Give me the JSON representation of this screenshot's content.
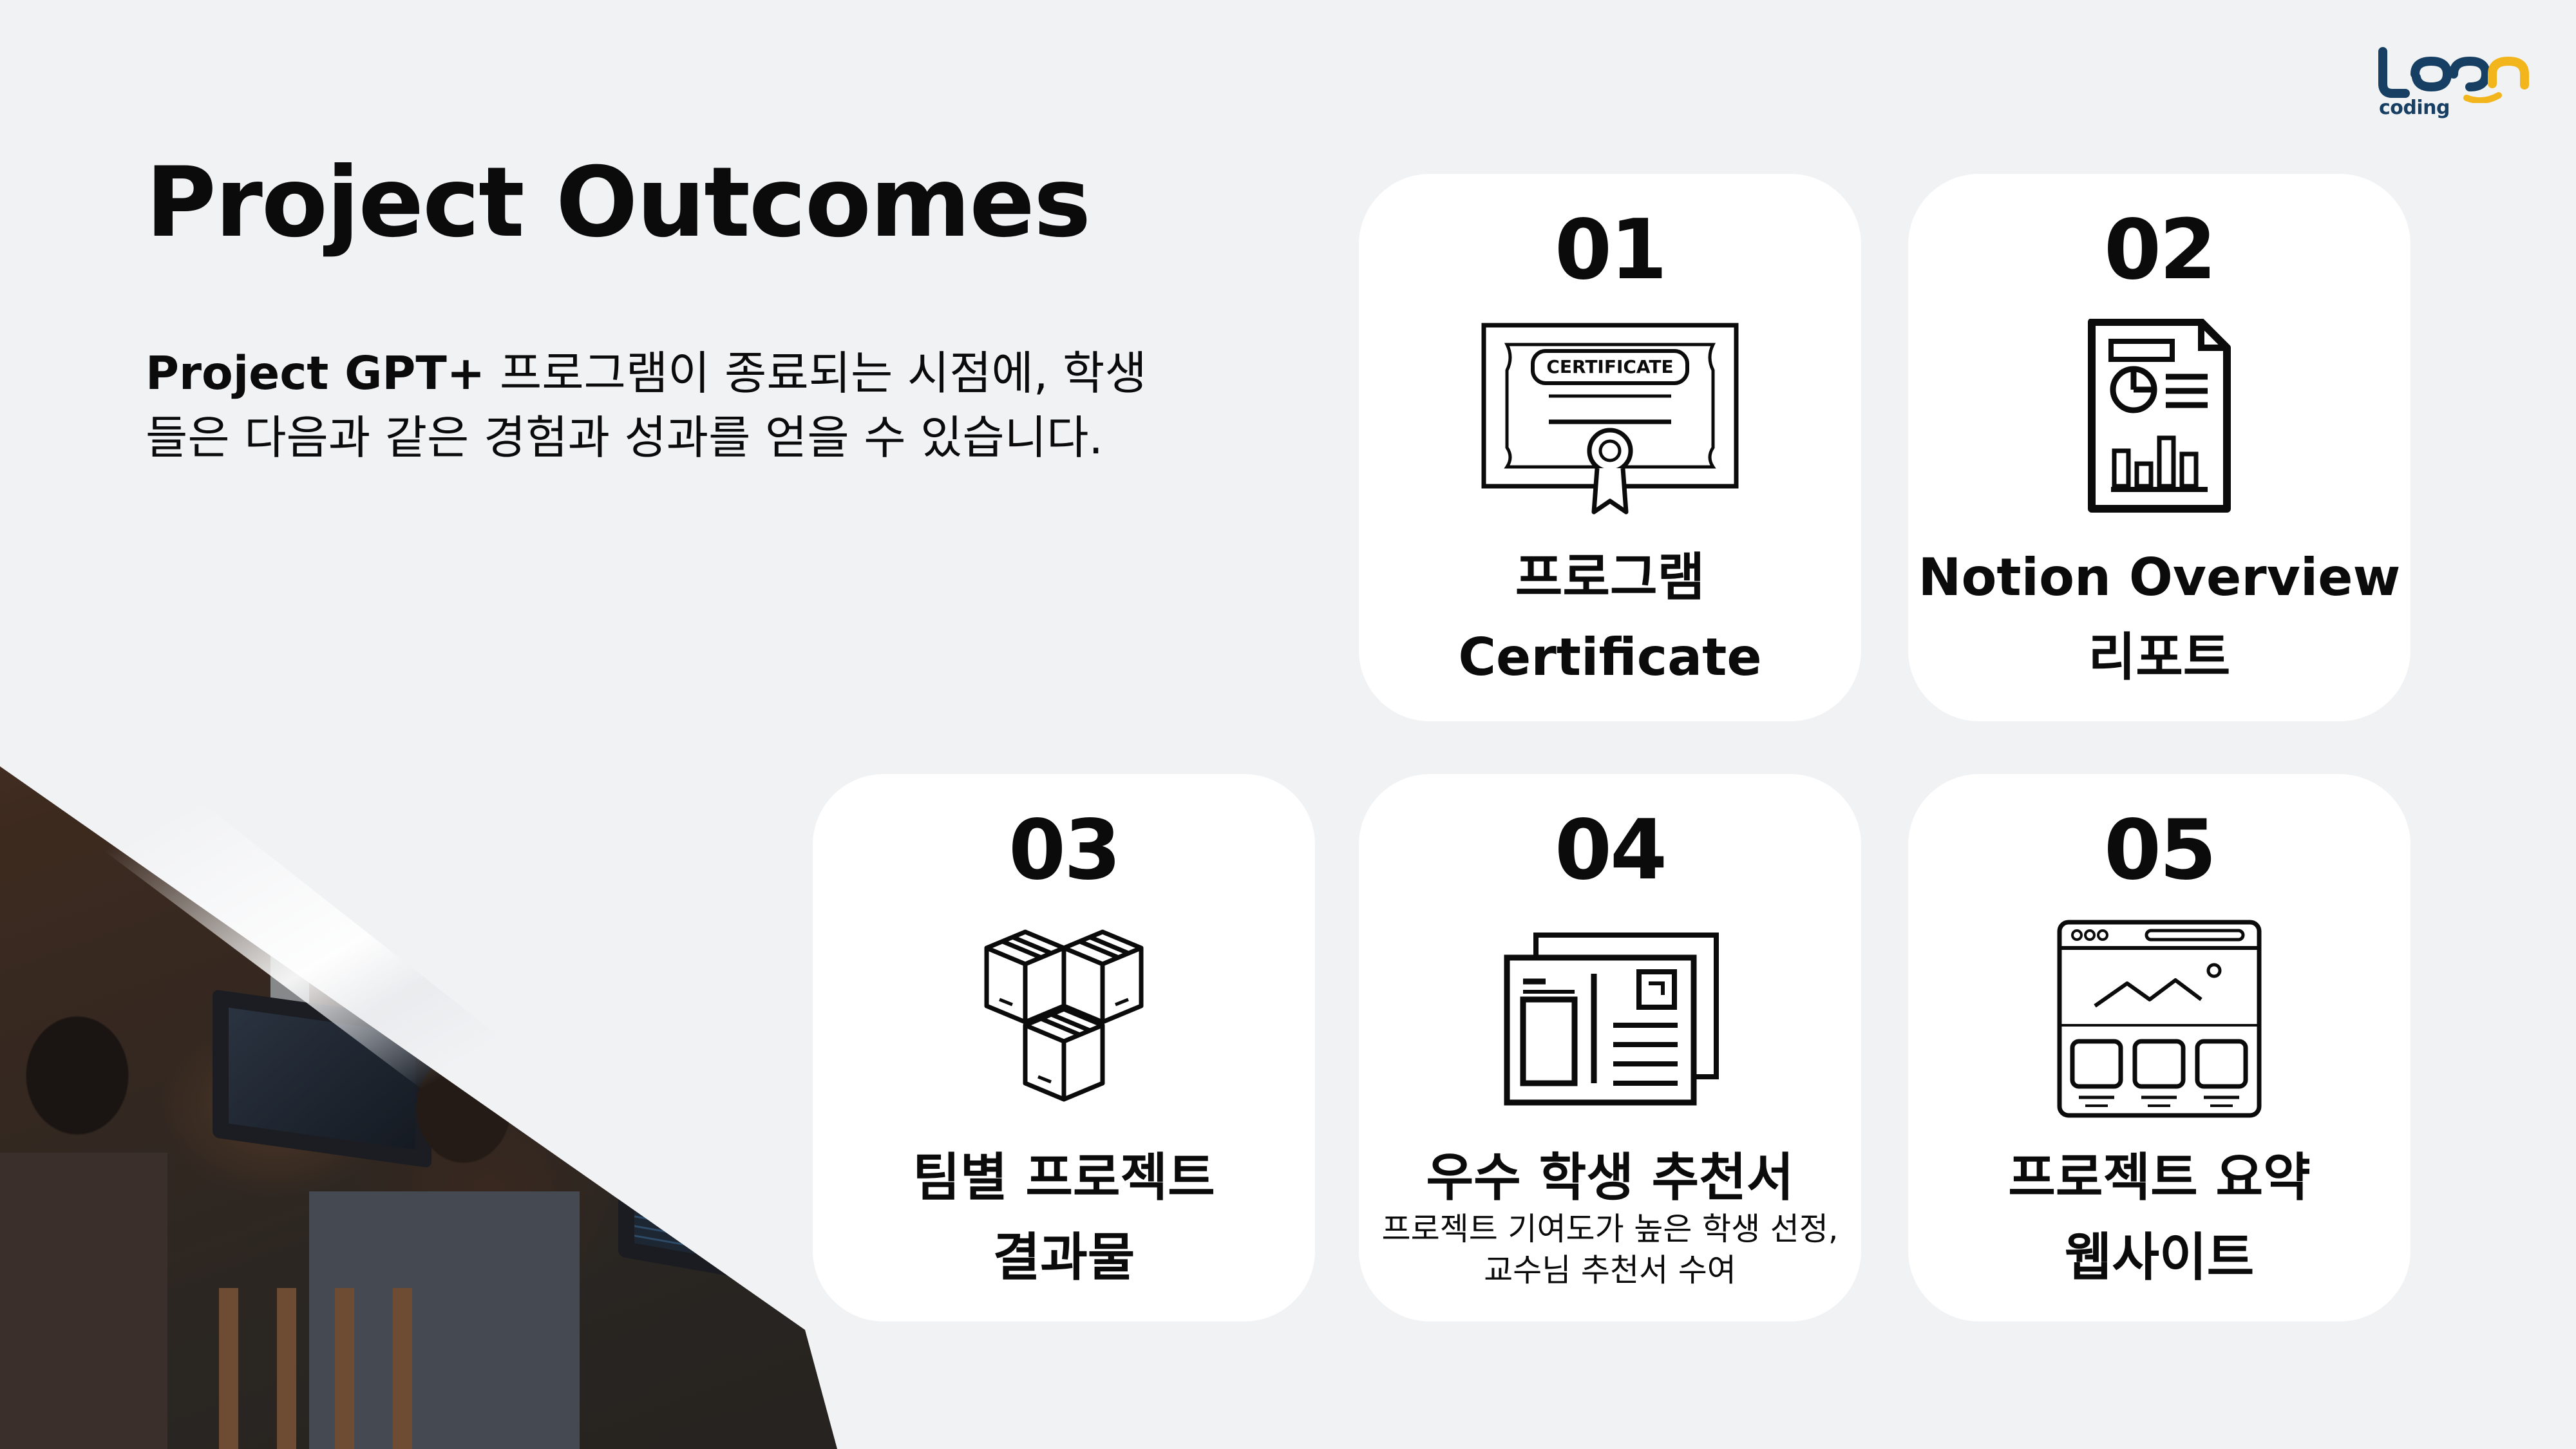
{
  "title": "Project Outcomes",
  "intro": {
    "bold": "Project GPT+",
    "line1_rest": " 프로그램이 종료되는 시점에, 학생",
    "line2": "들은 다음과 같은 경험과 성과를 얻을 수 있습니다."
  },
  "logo": {
    "text": "coding",
    "icon": "loop-coding-logo"
  },
  "cards": [
    {
      "number": "01",
      "icon": "certificate-icon",
      "icon_text": "CERTIFICATE",
      "label_lines": [
        "프로그램",
        "Certificate"
      ]
    },
    {
      "number": "02",
      "icon": "report-document-icon",
      "label_lines": [
        "Notion Overview",
        "리포트"
      ]
    },
    {
      "number": "03",
      "icon": "boxes-icon",
      "label_lines": [
        "팀별 프로젝트",
        "결과물"
      ]
    },
    {
      "number": "04",
      "icon": "letters-icon",
      "label_lines": [
        "우수 학생 추천서"
      ],
      "sub_lines": [
        "프로젝트 기여도가 높은 학생 선정,",
        "교수님 추천서 수여"
      ]
    },
    {
      "number": "05",
      "icon": "website-icon",
      "label_lines": [
        "프로젝트 요약",
        "웹사이트"
      ]
    }
  ],
  "colors": {
    "background": "#f1f2f4",
    "card": "#ffffff",
    "text": "#0b0b0b",
    "logo_navy": "#173f63",
    "logo_yellow": "#f2b51c"
  },
  "photo": {
    "description_icon": "students-coding-photo"
  }
}
